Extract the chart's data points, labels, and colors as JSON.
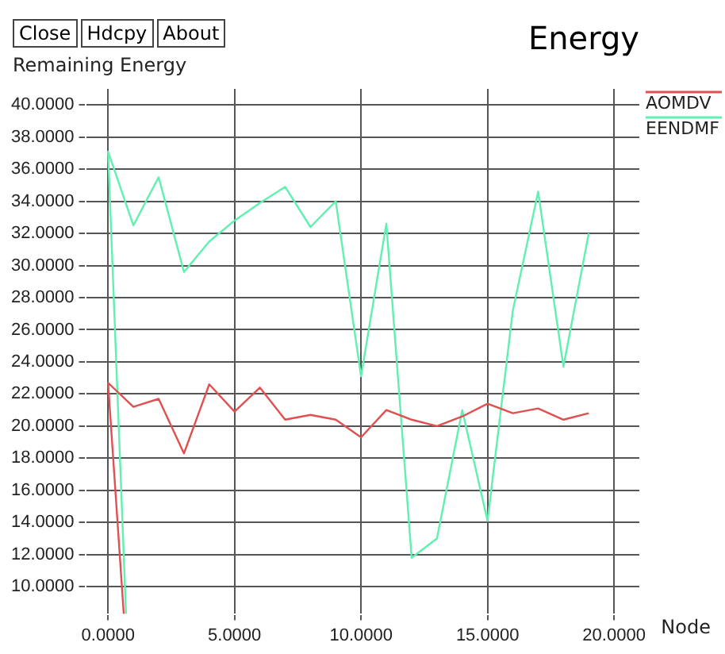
{
  "chart_data": {
    "type": "line",
    "title": "Energy",
    "ylabel": "Remaining Energy",
    "xlabel": "Node",
    "annotations": [
      "Close",
      "Hdcpy",
      "About"
    ],
    "xlim": [
      -0.9,
      21
    ],
    "ylim": [
      8.3,
      41
    ],
    "xticks": [
      {
        "value": 0,
        "label": "0.0000"
      },
      {
        "value": 5,
        "label": "5.0000"
      },
      {
        "value": 10,
        "label": "10.0000"
      },
      {
        "value": 15,
        "label": "15.0000"
      },
      {
        "value": 20,
        "label": "20.0000"
      }
    ],
    "yticks": [
      {
        "value": 10,
        "label": "10.0000"
      },
      {
        "value": 12,
        "label": "12.0000"
      },
      {
        "value": 14,
        "label": "14.0000"
      },
      {
        "value": 16,
        "label": "16.0000"
      },
      {
        "value": 18,
        "label": "18.0000"
      },
      {
        "value": 20,
        "label": "20.0000"
      },
      {
        "value": 22,
        "label": "22.0000"
      },
      {
        "value": 24,
        "label": "24.0000"
      },
      {
        "value": 26,
        "label": "26.0000"
      },
      {
        "value": 28,
        "label": "28.0000"
      },
      {
        "value": 30,
        "label": "30.0000"
      },
      {
        "value": 32,
        "label": "32.0000"
      },
      {
        "value": 34,
        "label": "34.0000"
      },
      {
        "value": 36,
        "label": "36.0000"
      },
      {
        "value": 38,
        "label": "38.0000"
      },
      {
        "value": 40,
        "label": "40.0000"
      }
    ],
    "grid": true,
    "legend": "top right",
    "marker": "none",
    "line_style": "solid",
    "series": [
      {
        "name": "AOMDV",
        "color": "#e05050",
        "x": [
          0.62,
          0,
          1,
          2,
          3,
          4,
          5,
          6,
          7,
          8,
          9,
          10,
          11,
          12,
          13,
          14,
          15,
          16,
          17,
          18,
          19
        ],
        "values": [
          8.3,
          22.7,
          21.2,
          21.7,
          18.3,
          22.6,
          20.9,
          22.4,
          20.4,
          20.7,
          20.4,
          19.3,
          21.0,
          20.4,
          20.0,
          20.6,
          21.4,
          20.8,
          21.1,
          20.4,
          20.8
        ]
      },
      {
        "name": "EENDMF",
        "color": "#60f0b0",
        "x": [
          0.71,
          0,
          1,
          2,
          3,
          4,
          5,
          6,
          7,
          8,
          9,
          10,
          11,
          12,
          13,
          14,
          15,
          16,
          17,
          18,
          19
        ],
        "values": [
          8.3,
          37.1,
          32.5,
          35.5,
          29.6,
          31.5,
          32.8,
          33.9,
          34.9,
          32.4,
          34.0,
          23.1,
          32.6,
          11.8,
          13.0,
          21.0,
          14.1,
          27.2,
          34.6,
          23.7,
          32.0
        ]
      }
    ]
  }
}
